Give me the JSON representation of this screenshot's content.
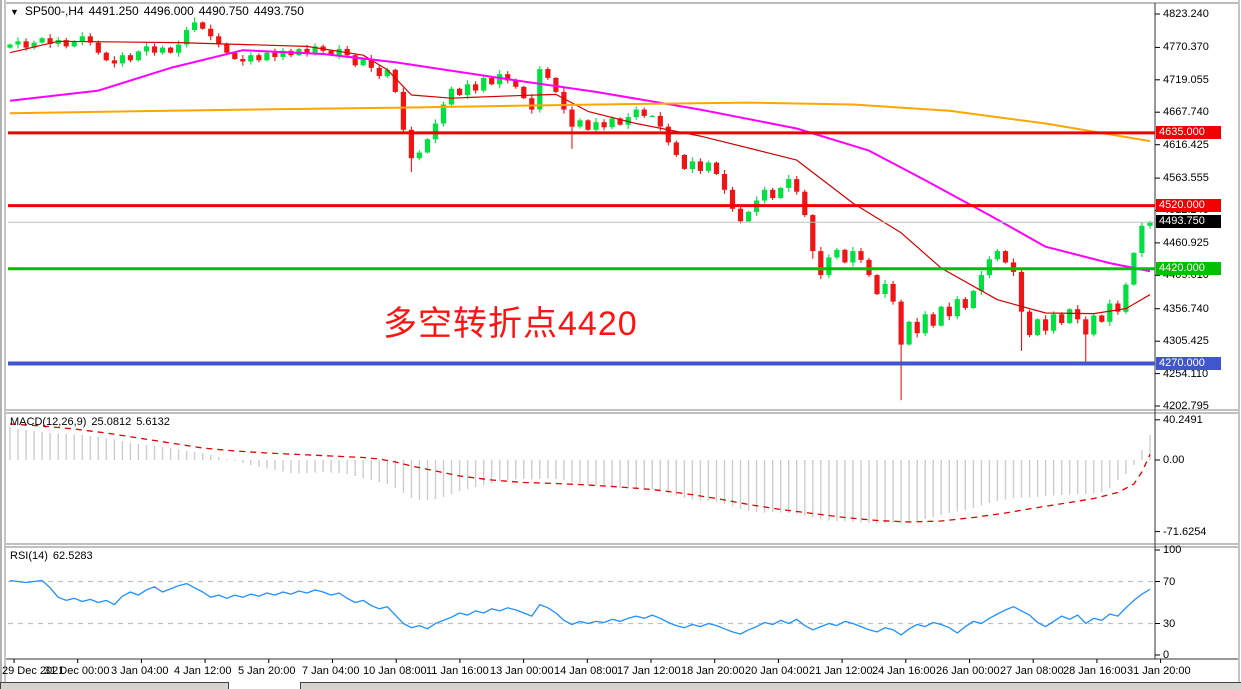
{
  "header": {
    "symbol": "SP500-,H4",
    "open": "4491.250",
    "high": "4496.000",
    "low": "4490.750",
    "close": "4493.750"
  },
  "annotation": {
    "text": "多空转折点4420",
    "color": "#ff1212"
  },
  "macd_panel_label": {
    "name": "MACD(12,26,9)",
    "main_value": "25.0812",
    "signal_value": "5.6132"
  },
  "rsi_panel_label": {
    "name": "RSI(14)",
    "value": "62.5283"
  },
  "colors": {
    "candle_up": "#00e040",
    "candle_down": "#f01414",
    "ma_fast": "#d40000",
    "ma_mid": "#ff00ff",
    "ma_slow": "#ffa500",
    "hline_red": "#f00000",
    "hline_green": "#00c000",
    "hline_blue": "#4156ce",
    "current_price_line": "#c0c0c0",
    "macd_hist": "#cccccc",
    "macd_signal": "#e00000",
    "rsi_line": "#1e90ff",
    "rsi_levels": "#c0c0c0",
    "badge_current_bg": "#000000"
  },
  "price_axis": {
    "ticks": [
      {
        "label": "4823.240",
        "value": 4823.24
      },
      {
        "label": "4770.370",
        "value": 4770.37
      },
      {
        "label": "4719.055",
        "value": 4719.055
      },
      {
        "label": "4667.740",
        "value": 4667.74
      },
      {
        "label": "4616.425",
        "value": 4616.425
      },
      {
        "label": "4563.555",
        "value": 4563.555
      },
      {
        "label": "4512.240",
        "value": 4512.24
      },
      {
        "label": "4460.925",
        "value": 4460.925
      },
      {
        "label": "4409.610",
        "value": 4409.61
      },
      {
        "label": "4356.740",
        "value": 4356.74
      },
      {
        "label": "4305.425",
        "value": 4305.425
      },
      {
        "label": "4254.110",
        "value": 4254.11
      },
      {
        "label": "4202.795",
        "value": 4202.795
      }
    ],
    "badges": [
      {
        "label": "4635.000",
        "value": 4635.0,
        "bg": "#f00000",
        "fg": "#ffffff"
      },
      {
        "label": "4520.000",
        "value": 4520.0,
        "bg": "#f00000",
        "fg": "#ffffff"
      },
      {
        "label": "4493.750",
        "value": 4493.75,
        "bg": "#000000",
        "fg": "#ffffff"
      },
      {
        "label": "4420.000",
        "value": 4420.0,
        "bg": "#00c000",
        "fg": "#ffffff"
      },
      {
        "label": "4270.000",
        "value": 4270.0,
        "bg": "#4156ce",
        "fg": "#ffffff"
      }
    ]
  },
  "macd_axis": [
    {
      "label": "40.2491",
      "value": 40.2491
    },
    {
      "label": "0.00",
      "value": 0
    },
    {
      "label": "-71.6254",
      "value": -71.6254
    }
  ],
  "rsi_axis": [
    {
      "label": "100",
      "value": 100
    },
    {
      "label": "70",
      "value": 70
    },
    {
      "label": "30",
      "value": 30
    },
    {
      "label": "0",
      "value": 0
    }
  ],
  "time_axis": [
    "29 Dec 2021",
    "31 Dec 00:00",
    "3 Jan 04:00",
    "4 Jan 12:00",
    "5 Jan 20:00",
    "7 Jan 04:00",
    "10 Jan 08:00",
    "11 Jan 16:00",
    "13 Jan 00:00",
    "14 Jan 08:00",
    "17 Jan 12:00",
    "18 Jan 20:00",
    "20 Jan 04:00",
    "21 Jan 12:00",
    "24 Jan 16:00",
    "26 Jan 00:00",
    "27 Jan 08:00",
    "28 Jan 16:00",
    "31 Jan 20:00"
  ],
  "chart_data": [
    {
      "name": "price",
      "type": "candlestick",
      "symbol": "SP500-,H4",
      "timeframe": "H4",
      "ylim": [
        4196,
        4841
      ],
      "current_price": 4493.75,
      "first_open": 4770,
      "closes": [
        4775,
        4780,
        4770,
        4778,
        4785,
        4776,
        4782,
        4772,
        4780,
        4788,
        4778,
        4762,
        4750,
        4745,
        4758,
        4750,
        4764,
        4772,
        4762,
        4770,
        4762,
        4775,
        4798,
        4810,
        4800,
        4788,
        4775,
        4762,
        4752,
        4748,
        4758,
        4750,
        4762,
        4755,
        4765,
        4758,
        4768,
        4762,
        4772,
        4765,
        4758,
        4768,
        4758,
        4742,
        4752,
        4738,
        4725,
        4735,
        4700,
        4640,
        4595,
        4604,
        4625,
        4650,
        4680,
        4705,
        4695,
        4712,
        4702,
        4722,
        4712,
        4728,
        4718,
        4708,
        4690,
        4672,
        4736,
        4722,
        4700,
        4672,
        4645,
        4655,
        4640,
        4652,
        4644,
        4658,
        4648,
        4660,
        4672,
        4662,
        4662,
        4645,
        4620,
        4600,
        4578,
        4590,
        4575,
        4588,
        4570,
        4545,
        4515,
        4495,
        4510,
        4528,
        4545,
        4532,
        4548,
        4562,
        4542,
        4505,
        4448,
        4410,
        4438,
        4450,
        4430,
        4448,
        4434,
        4410,
        4380,
        4396,
        4368,
        4300,
        4336,
        4318,
        4348,
        4330,
        4360,
        4345,
        4372,
        4358,
        4385,
        4410,
        4435,
        4448,
        4430,
        4415,
        4352,
        4315,
        4340,
        4322,
        4348,
        4334,
        4356,
        4340,
        4316,
        4346,
        4336,
        4365,
        4352,
        4395,
        4445,
        4488,
        4493.75
      ],
      "wick_overrides": {
        "23": {
          "high": 4818
        },
        "50": {
          "low": 4573
        },
        "70": {
          "low": 4610
        },
        "100": {
          "low": 4436
        },
        "111": {
          "low": 4212
        },
        "126": {
          "low": 4290
        },
        "134": {
          "low": 4268
        },
        "142": {
          "high": 4496
        }
      },
      "hlines": [
        {
          "value": 4635,
          "color": "#f00000",
          "width": 3
        },
        {
          "value": 4520,
          "color": "#f00000",
          "width": 3
        },
        {
          "value": 4493.75,
          "color": "#c0c0c0",
          "width": 1
        },
        {
          "value": 4420,
          "color": "#00c000",
          "width": 3
        },
        {
          "value": 4270,
          "color": "#4156ce",
          "width": 4
        }
      ],
      "moving_averages": [
        {
          "name": "ma-fast",
          "color": "#d40000",
          "width": 1.2,
          "points": [
            [
              0,
              4762
            ],
            [
              6,
              4780
            ],
            [
              21,
              4778
            ],
            [
              37,
              4772
            ],
            [
              44,
              4758
            ],
            [
              47,
              4735
            ],
            [
              50,
              4695
            ],
            [
              55,
              4690
            ],
            [
              57,
              4691
            ],
            [
              63,
              4694
            ],
            [
              68,
              4696
            ],
            [
              72,
              4669
            ],
            [
              78,
              4650
            ],
            [
              86,
              4630
            ],
            [
              93,
              4608
            ],
            [
              98,
              4592
            ],
            [
              105,
              4524
            ],
            [
              111,
              4477
            ],
            [
              116,
              4421
            ],
            [
              123,
              4371
            ],
            [
              129,
              4350
            ],
            [
              135,
              4349
            ],
            [
              139,
              4357
            ],
            [
              142,
              4379
            ]
          ]
        },
        {
          "name": "ma-mid",
          "color": "#ff00ff",
          "width": 2,
          "points": [
            [
              0,
              4686
            ],
            [
              11,
              4702
            ],
            [
              20,
              4738
            ],
            [
              29,
              4766
            ],
            [
              39,
              4760
            ],
            [
              48,
              4747
            ],
            [
              61,
              4722
            ],
            [
              73,
              4700
            ],
            [
              86,
              4672
            ],
            [
              98,
              4642
            ],
            [
              107,
              4607
            ],
            [
              114,
              4560
            ],
            [
              122,
              4505
            ],
            [
              129,
              4455
            ],
            [
              137,
              4429
            ],
            [
              142,
              4416
            ]
          ]
        },
        {
          "name": "ma-slow",
          "color": "#ffa500",
          "width": 2,
          "points": [
            [
              0,
              4666
            ],
            [
              24,
              4671
            ],
            [
              48,
              4675
            ],
            [
              73,
              4680
            ],
            [
              92,
              4683
            ],
            [
              105,
              4680
            ],
            [
              117,
              4670
            ],
            [
              129,
              4650
            ],
            [
              142,
              4622
            ]
          ]
        }
      ]
    },
    {
      "name": "macd",
      "type": "bar+line",
      "params": "12,26,9",
      "ylim": [
        -84,
        46
      ],
      "last_main": 25.0812,
      "last_signal": 5.6132,
      "histogram": [
        33,
        31,
        30,
        29,
        28,
        27,
        26.5,
        26,
        25.5,
        25,
        24,
        23,
        22,
        20.5,
        19,
        17.5,
        16,
        15,
        14,
        13,
        12,
        10.5,
        9,
        8,
        7,
        5,
        3,
        1,
        -1,
        -3,
        -5,
        -7,
        -8.5,
        -10,
        -11.5,
        -13,
        -13.5,
        -13,
        -12.5,
        -12,
        -12.5,
        -13,
        -14,
        -16,
        -18,
        -20,
        -22,
        -24,
        -28,
        -33,
        -38,
        -40,
        -40,
        -39,
        -37,
        -34,
        -31,
        -29,
        -27,
        -25,
        -23,
        -21,
        -20,
        -19.5,
        -19,
        -19.5,
        -19,
        -18.5,
        -19,
        -20,
        -22,
        -23.5,
        -25,
        -25.5,
        -26,
        -27,
        -28,
        -28.5,
        -28,
        -28.5,
        -29.5,
        -31,
        -33,
        -35.5,
        -38,
        -39.5,
        -40.5,
        -41,
        -42,
        -44,
        -46.5,
        -49,
        -51,
        -52,
        -52.5,
        -52,
        -52.5,
        -53,
        -54,
        -55.5,
        -57.5,
        -59.5,
        -60.5,
        -61,
        -61.5,
        -62,
        -62.5,
        -63,
        -63.5,
        -63.5,
        -63,
        -63.5,
        -62.5,
        -61,
        -59,
        -57,
        -55,
        -53,
        -51.5,
        -50,
        -48,
        -45.5,
        -43,
        -41,
        -39.5,
        -38,
        -37.5,
        -37.5,
        -37,
        -36,
        -35.5,
        -35,
        -34.5,
        -34,
        -34,
        -33.5,
        -32,
        -28,
        -20,
        -14,
        -5,
        10,
        25.08
      ],
      "signal_points": [
        [
          0,
          36
        ],
        [
          4,
          34
        ],
        [
          8,
          31
        ],
        [
          12,
          27
        ],
        [
          16,
          22
        ],
        [
          20,
          17
        ],
        [
          24,
          12
        ],
        [
          28,
          9
        ],
        [
          32,
          7
        ],
        [
          36,
          5.5
        ],
        [
          40,
          4
        ],
        [
          44,
          2.5
        ],
        [
          46,
          1
        ],
        [
          48,
          -2
        ],
        [
          50,
          -6
        ],
        [
          53,
          -11
        ],
        [
          56,
          -16
        ],
        [
          60,
          -20
        ],
        [
          64,
          -22.5
        ],
        [
          68,
          -23.5
        ],
        [
          72,
          -25
        ],
        [
          76,
          -27
        ],
        [
          80,
          -29.5
        ],
        [
          84,
          -33.5
        ],
        [
          88,
          -38.5
        ],
        [
          92,
          -44.5
        ],
        [
          96,
          -49.5
        ],
        [
          100,
          -53.5
        ],
        [
          104,
          -57.5
        ],
        [
          108,
          -60.5
        ],
        [
          112,
          -62
        ],
        [
          116,
          -61
        ],
        [
          120,
          -57.5
        ],
        [
          124,
          -53
        ],
        [
          128,
          -47.5
        ],
        [
          132,
          -42.5
        ],
        [
          135,
          -38.5
        ],
        [
          138,
          -32.5
        ],
        [
          140,
          -24
        ],
        [
          141,
          -12
        ],
        [
          142,
          5.61
        ]
      ]
    },
    {
      "name": "rsi",
      "type": "line",
      "params": "14",
      "ylim": [
        -3,
        103
      ],
      "levels": [
        70,
        30
      ],
      "last": 62.5283,
      "values": [
        71,
        70,
        69,
        70,
        71,
        64,
        55,
        52,
        54,
        51,
        53,
        50,
        52,
        48,
        56,
        60,
        57,
        62,
        65,
        60,
        63,
        66,
        68,
        64,
        60,
        55,
        57,
        54,
        57,
        55,
        58,
        56,
        59,
        57,
        60,
        58,
        61,
        59,
        62,
        60,
        57,
        59,
        54,
        50,
        52,
        47,
        44,
        46,
        38,
        30,
        26,
        28,
        25,
        30,
        33,
        36,
        40,
        38,
        42,
        40,
        44,
        42,
        45,
        43,
        40,
        37,
        48,
        45,
        40,
        33,
        29,
        32,
        30,
        32,
        31,
        34,
        32,
        35,
        37,
        35,
        38,
        35,
        31,
        28,
        26,
        29,
        27,
        30,
        28,
        25,
        22,
        20,
        24,
        27,
        31,
        29,
        33,
        30,
        34,
        28,
        24,
        27,
        30,
        28,
        32,
        30,
        27,
        24,
        22,
        26,
        24,
        19,
        25,
        29,
        27,
        31,
        29,
        26,
        21,
        27,
        32,
        30,
        35,
        39,
        43,
        46,
        42,
        38,
        31,
        27,
        32,
        37,
        34,
        38,
        30,
        35,
        33,
        39,
        37,
        45,
        52,
        58,
        62.53
      ]
    }
  ]
}
